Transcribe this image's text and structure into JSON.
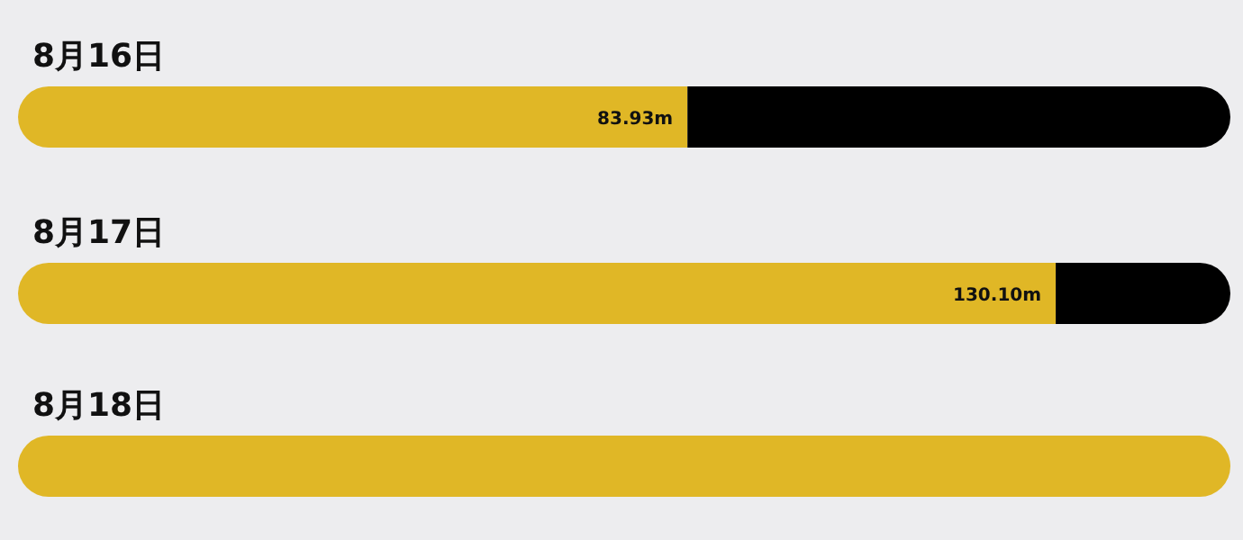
{
  "chart_data": {
    "type": "bar",
    "orientation": "horizontal",
    "stacked": true,
    "xlim": [
      0,
      152
    ],
    "categories": [
      "8月16日",
      "8月17日",
      "8月18日"
    ],
    "series": [
      {
        "color": "#e0b726",
        "values": [
          83.93,
          130.1,
          152
        ],
        "value_labels": [
          "83.93m",
          "130.10m",
          null
        ]
      },
      {
        "color": "#000000",
        "values": [
          68.1,
          21.9,
          0
        ]
      }
    ]
  }
}
